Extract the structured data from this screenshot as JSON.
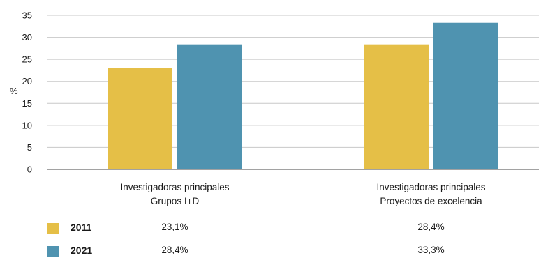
{
  "chart_data": {
    "type": "bar",
    "categories": [
      [
        "Investigadoras principales",
        "Grupos I+D"
      ],
      [
        "Investigadoras principales",
        "Proyectos de excelencia"
      ]
    ],
    "series": [
      {
        "name": "2011",
        "values": [
          23.1,
          28.4
        ],
        "color": "#e5bf47",
        "labels": [
          "23,1%",
          "28,4%"
        ]
      },
      {
        "name": "2021",
        "values": [
          28.4,
          33.3
        ],
        "color": "#4f93b0",
        "labels": [
          "28,4%",
          "33,3%"
        ]
      }
    ],
    "ylabel": "%",
    "ylim": [
      0,
      35
    ],
    "yticks": [
      0,
      5,
      10,
      15,
      20,
      25,
      30,
      35
    ],
    "grid": true,
    "legend": "bottom table"
  }
}
